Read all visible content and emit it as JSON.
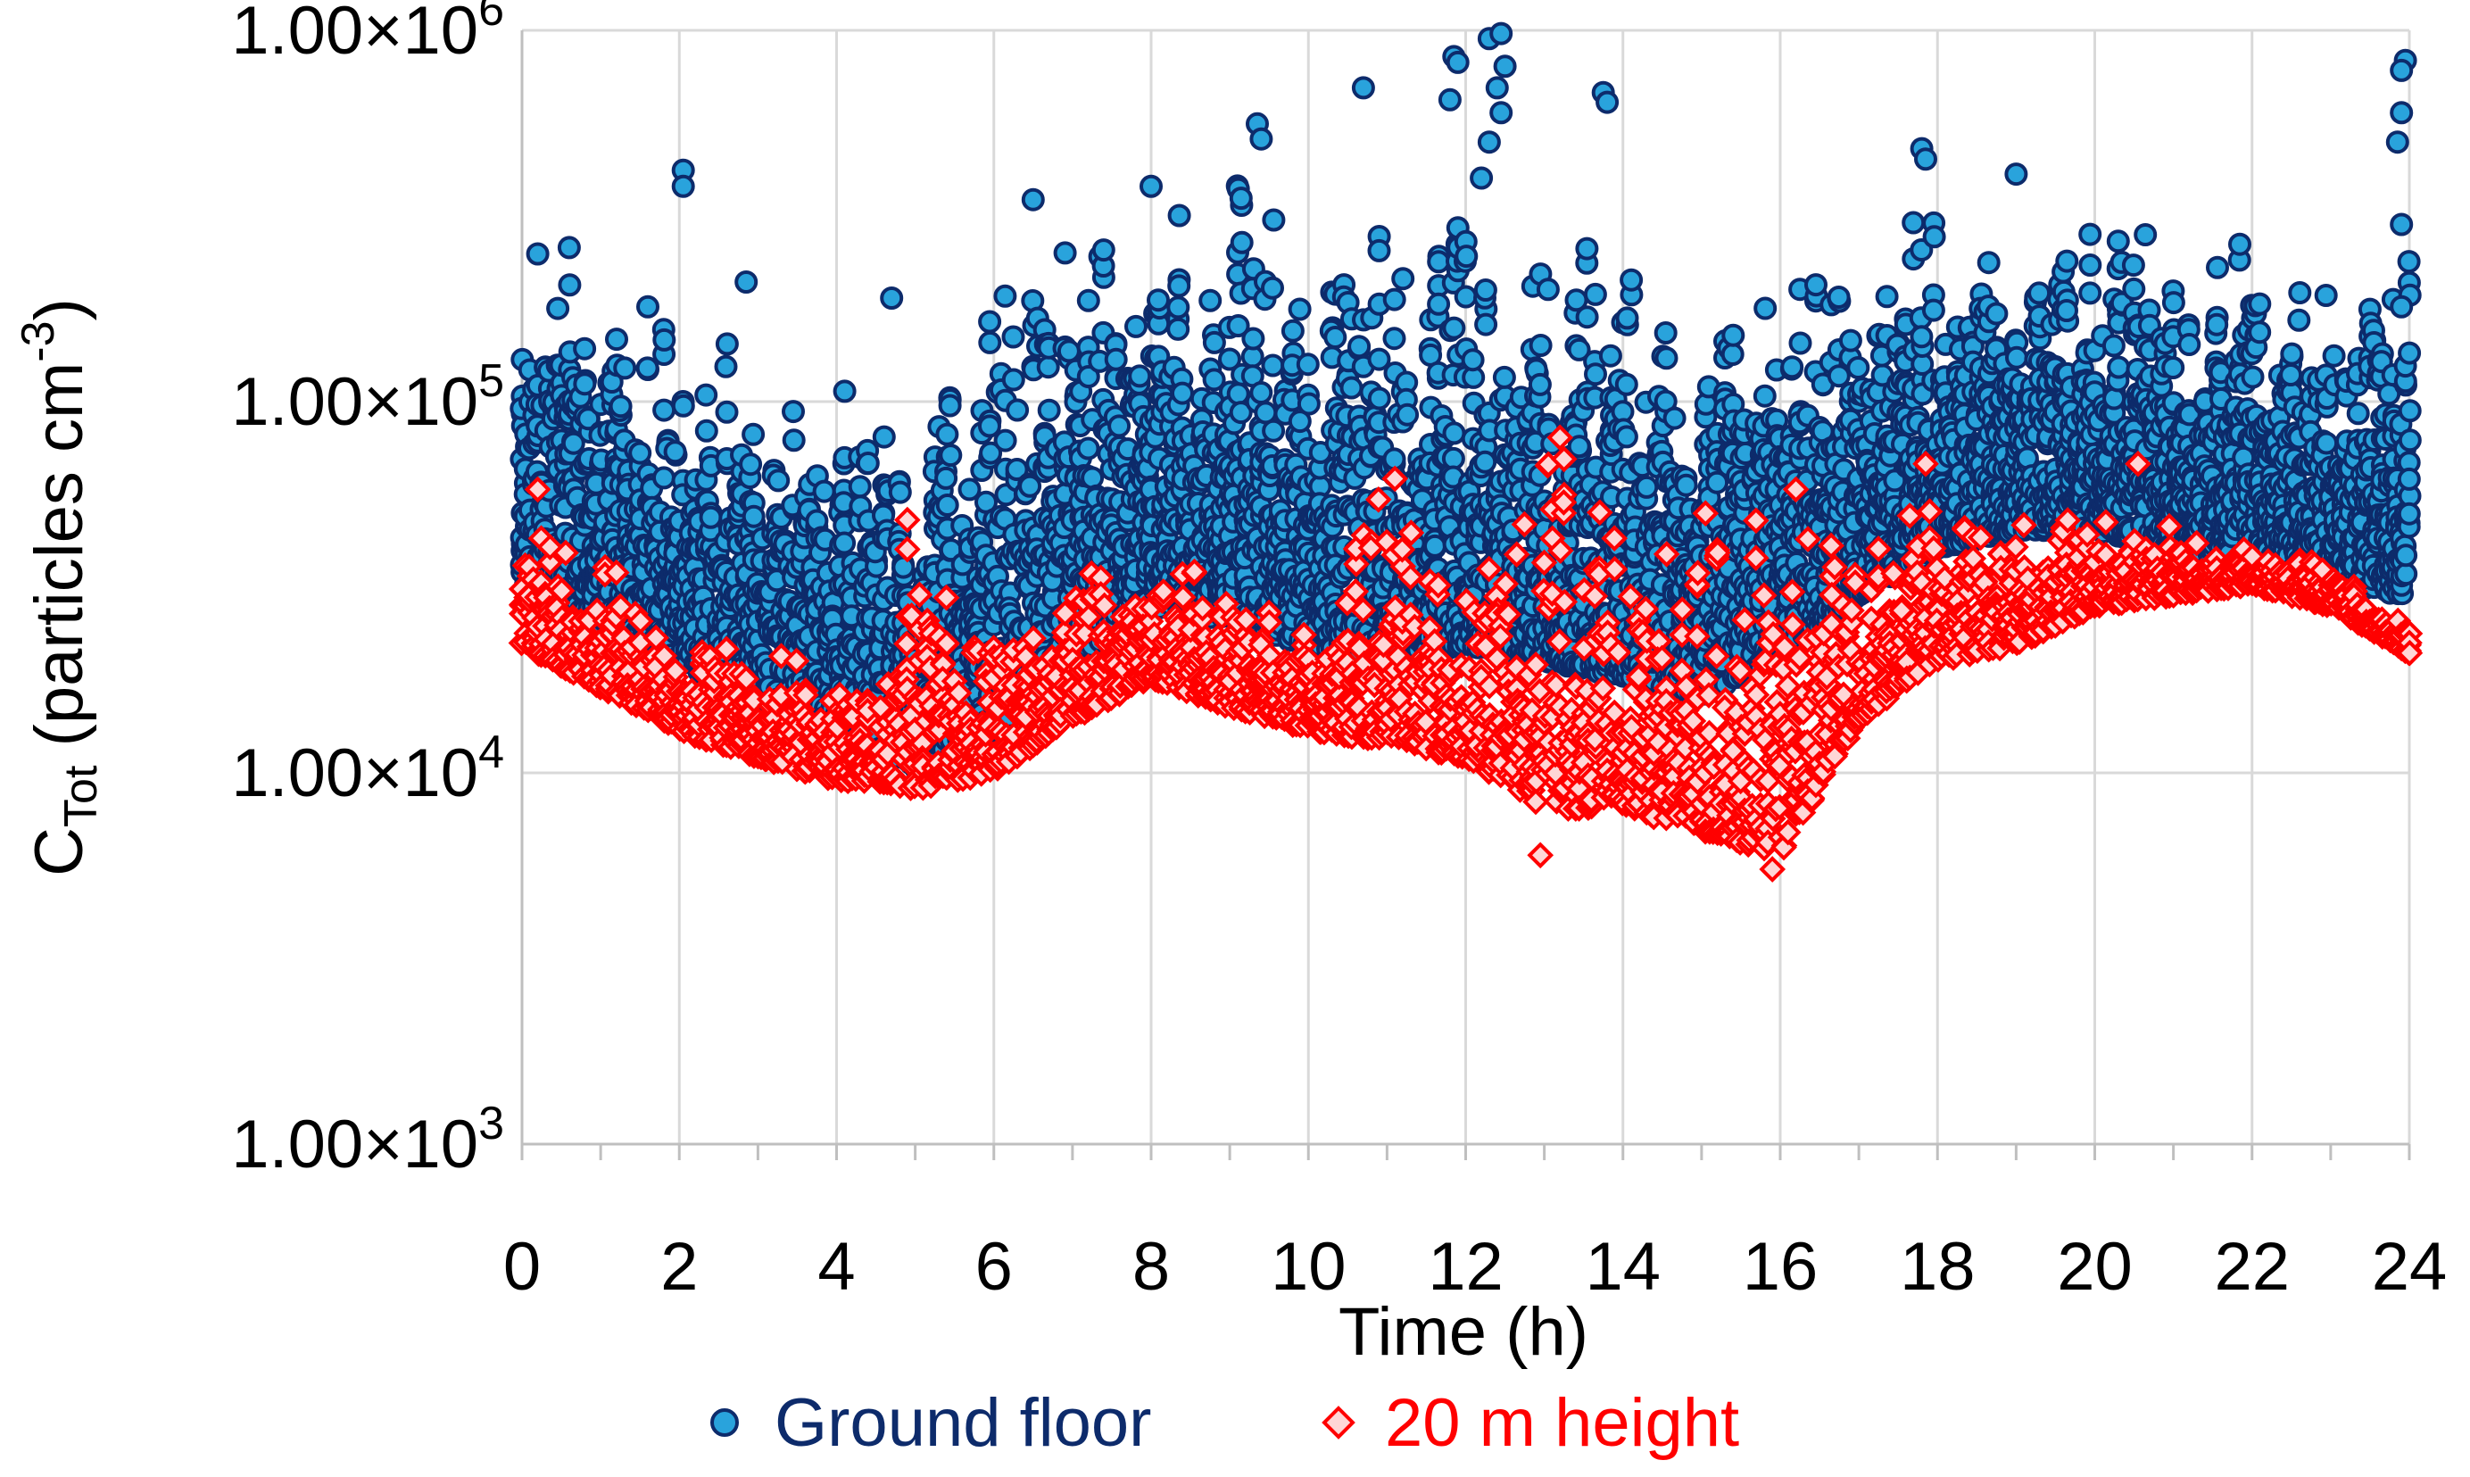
{
  "chart_data": {
    "type": "scatter",
    "title": "",
    "xlabel": "Time (h)",
    "ylabel": {
      "base": "C",
      "subscript": "Tot",
      "rest": " (particles cm",
      "superscript": "-3",
      "close": ")"
    },
    "xlim": [
      0,
      24
    ],
    "ylim": [
      1000,
      1000000
    ],
    "yscale": "log",
    "grid": true,
    "legend_position": "bottom-center",
    "x_ticks": [
      0,
      2,
      4,
      6,
      8,
      10,
      12,
      14,
      16,
      18,
      20,
      22,
      24
    ],
    "x_tick_labels": [
      "0",
      "2",
      "4",
      "6",
      "8",
      "10",
      "12",
      "14",
      "16",
      "18",
      "20",
      "22",
      "24"
    ],
    "y_ticks": [
      {
        "value": 1000,
        "mantissa": "1.00×10",
        "exponent": "3"
      },
      {
        "value": 10000,
        "mantissa": "1.00×10",
        "exponent": "4"
      },
      {
        "value": 100000,
        "mantissa": "1.00×10",
        "exponent": "5"
      },
      {
        "value": 1000000,
        "mantissa": "1.00×10",
        "exponent": "6"
      }
    ],
    "series": [
      {
        "name": "Ground floor",
        "marker": "circle",
        "fill": "#29a3dc",
        "edge": "#0d2b6b",
        "legend_color": "#0d2b6b",
        "profile_x": [
          0,
          1,
          2,
          3,
          4,
          4.5,
          5,
          6,
          7,
          8,
          9,
          10,
          11,
          12,
          13,
          14,
          15,
          16,
          17,
          18,
          19,
          20,
          21,
          22,
          23,
          24
        ],
        "profile_low": [
          30000,
          25000,
          20000,
          15000,
          12000,
          11000,
          10000,
          12000,
          20000,
          28000,
          25000,
          22000,
          20000,
          22000,
          20000,
          18000,
          16000,
          20000,
          30000,
          40000,
          45000,
          45000,
          40000,
          38000,
          32000,
          30000
        ],
        "profile_high": [
          250000,
          220000,
          180000,
          160000,
          120000,
          100000,
          90000,
          200000,
          300000,
          400000,
          500000,
          300000,
          350000,
          400000,
          350000,
          400000,
          200000,
          300000,
          300000,
          400000,
          350000,
          400000,
          350000,
          300000,
          250000,
          300000
        ],
        "outliers": [
          {
            "x": 2.05,
            "y": 420000
          },
          {
            "x": 2.05,
            "y": 380000
          },
          {
            "x": 4.7,
            "y": 190000
          },
          {
            "x": 6.5,
            "y": 350000
          },
          {
            "x": 9.35,
            "y": 560000
          },
          {
            "x": 9.4,
            "y": 510000
          },
          {
            "x": 10.7,
            "y": 700000
          },
          {
            "x": 11.85,
            "y": 850000
          },
          {
            "x": 11.9,
            "y": 820000
          },
          {
            "x": 11.8,
            "y": 650000
          },
          {
            "x": 12.3,
            "y": 950000
          },
          {
            "x": 12.45,
            "y": 980000
          },
          {
            "x": 12.5,
            "y": 800000
          },
          {
            "x": 12.4,
            "y": 700000
          },
          {
            "x": 12.45,
            "y": 600000
          },
          {
            "x": 12.3,
            "y": 500000
          },
          {
            "x": 12.2,
            "y": 400000
          },
          {
            "x": 13.75,
            "y": 680000
          },
          {
            "x": 13.8,
            "y": 640000
          },
          {
            "x": 17.8,
            "y": 480000
          },
          {
            "x": 17.85,
            "y": 450000
          },
          {
            "x": 23.95,
            "y": 830000
          },
          {
            "x": 23.9,
            "y": 780000
          },
          {
            "x": 23.9,
            "y": 600000
          },
          {
            "x": 23.85,
            "y": 500000
          },
          {
            "x": 23.9,
            "y": 300000
          },
          {
            "x": 23.9,
            "y": 180000
          },
          {
            "x": 0.2,
            "y": 250000
          },
          {
            "x": 0.6,
            "y": 260000
          },
          {
            "x": 1.6,
            "y": 180000
          },
          {
            "x": 2.85,
            "y": 210000
          },
          {
            "x": 8.0,
            "y": 380000
          },
          {
            "x": 19.0,
            "y": 410000
          }
        ]
      },
      {
        "name": "20 m height",
        "marker": "diamond",
        "fill": "#ffd6d6",
        "edge": "#ff0000",
        "legend_color": "#ff0000",
        "profile_x": [
          0,
          1,
          2,
          3,
          4,
          4.5,
          5,
          6,
          7,
          8,
          9,
          10,
          11,
          12,
          13,
          14,
          15,
          16,
          17,
          18,
          19,
          20,
          21,
          22,
          23,
          24
        ],
        "profile_low": [
          22000,
          17000,
          13000,
          11000,
          9500,
          9500,
          9000,
          10000,
          14000,
          18000,
          15000,
          13000,
          12000,
          11000,
          8000,
          8000,
          7000,
          6000,
          14000,
          20000,
          22000,
          28000,
          30000,
          32000,
          28000,
          21000
        ],
        "profile_high": [
          55000,
          38000,
          26000,
          23000,
          20000,
          18000,
          45000,
          25000,
          35000,
          45000,
          30000,
          32000,
          60000,
          40000,
          75000,
          50000,
          50000,
          60000,
          45000,
          65000,
          55000,
          60000,
          48000,
          40000,
          38000,
          26000
        ],
        "outliers": [
          {
            "x": 4.9,
            "y": 48000
          },
          {
            "x": 4.9,
            "y": 40000
          },
          {
            "x": 13.2,
            "y": 80000
          },
          {
            "x": 13.25,
            "y": 70000
          },
          {
            "x": 12.95,
            "y": 6000
          },
          {
            "x": 15.9,
            "y": 5500
          },
          {
            "x": 17.85,
            "y": 68000
          },
          {
            "x": 20.55,
            "y": 68000
          },
          {
            "x": 11.1,
            "y": 62000
          },
          {
            "x": 0.2,
            "y": 58000
          },
          {
            "x": 16.2,
            "y": 58000
          },
          {
            "x": 15.05,
            "y": 50000
          }
        ]
      }
    ]
  }
}
